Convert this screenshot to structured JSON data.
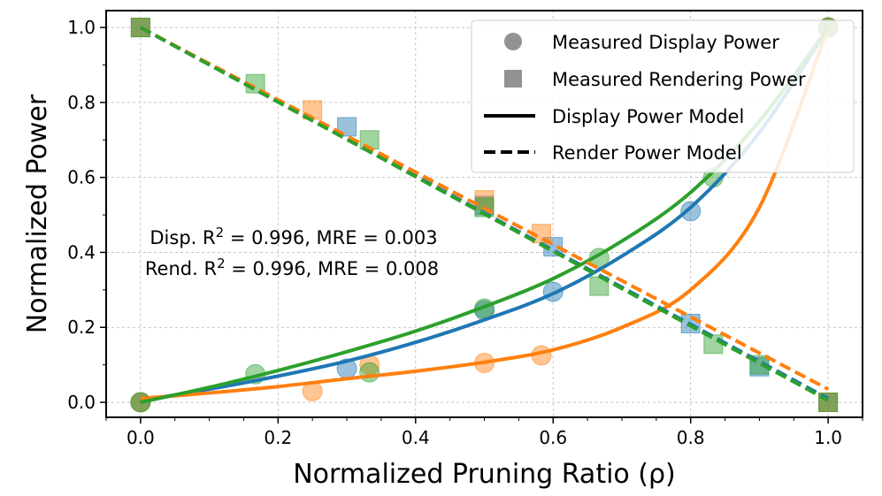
{
  "chart_data": {
    "type": "scatter",
    "xlabel": "Normalized Pruning Ratio (ρ)",
    "ylabel": "Normalized Power",
    "xlim": [
      -0.05,
      1.05
    ],
    "ylim": [
      -0.04,
      1.045
    ],
    "xticks": [
      0.0,
      0.2,
      0.4,
      0.6,
      0.8,
      1.0
    ],
    "yticks": [
      0.0,
      0.2,
      0.4,
      0.6,
      0.8,
      1.0
    ],
    "xtick_labels": [
      "0.0",
      "0.2",
      "0.4",
      "0.6",
      "0.8",
      "1.0"
    ],
    "ytick_labels": [
      "0.0",
      "0.2",
      "0.4",
      "0.6",
      "0.8",
      "1.0"
    ],
    "grid": true,
    "legend_position": "top-right",
    "legend": [
      {
        "label": "Measured Display Power",
        "marker": "circle"
      },
      {
        "label": "Measured Rendering Power",
        "marker": "square"
      },
      {
        "label": "Display Power Model",
        "line": "solid"
      },
      {
        "label": "Render Power Model",
        "line": "dashed"
      }
    ],
    "annotations": [
      {
        "prefix": "Disp. R",
        "sup": "2",
        "suffix": " = 0.996, MRE = 0.003"
      },
      {
        "prefix": "Rend. R",
        "sup": "2",
        "suffix": " = 0.996, MRE = 0.008"
      }
    ],
    "colors": {
      "blue": "#1f77b4",
      "orange": "#ff7f0e",
      "green": "#2ca02c"
    },
    "display_points": {
      "blue": [
        [
          0.0,
          0.0
        ],
        [
          0.3,
          0.09
        ],
        [
          0.5,
          0.245
        ],
        [
          0.6,
          0.295
        ],
        [
          0.8,
          0.51
        ],
        [
          1.0,
          1.0
        ]
      ],
      "orange": [
        [
          0.0,
          0.0
        ],
        [
          0.25,
          0.03
        ],
        [
          0.333,
          0.1
        ],
        [
          0.5,
          0.105
        ],
        [
          0.583,
          0.125
        ],
        [
          1.0,
          1.0
        ]
      ],
      "green": [
        [
          0.0,
          0.0
        ],
        [
          0.167,
          0.075
        ],
        [
          0.333,
          0.08
        ],
        [
          0.5,
          0.25
        ],
        [
          0.667,
          0.385
        ],
        [
          0.833,
          0.6
        ],
        [
          1.0,
          1.0
        ]
      ]
    },
    "render_points": {
      "blue": [
        [
          0.0,
          1.0
        ],
        [
          0.3,
          0.735
        ],
        [
          0.5,
          0.525
        ],
        [
          0.6,
          0.415
        ],
        [
          0.8,
          0.21
        ],
        [
          0.9,
          0.095
        ],
        [
          1.0,
          0.0
        ]
      ],
      "orange": [
        [
          0.0,
          1.0
        ],
        [
          0.25,
          0.78
        ],
        [
          0.5,
          0.54
        ],
        [
          0.583,
          0.45
        ],
        [
          1.0,
          0.0
        ]
      ],
      "green": [
        [
          0.0,
          1.0
        ],
        [
          0.167,
          0.85
        ],
        [
          0.333,
          0.7
        ],
        [
          0.5,
          0.52
        ],
        [
          0.667,
          0.31
        ],
        [
          0.833,
          0.155
        ],
        [
          0.9,
          0.1
        ],
        [
          1.0,
          0.0
        ]
      ]
    },
    "display_models": {
      "blue": [
        [
          0.0,
          0.005
        ],
        [
          0.1,
          0.035
        ],
        [
          0.2,
          0.07
        ],
        [
          0.3,
          0.11
        ],
        [
          0.4,
          0.16
        ],
        [
          0.5,
          0.22
        ],
        [
          0.6,
          0.29
        ],
        [
          0.7,
          0.39
        ],
        [
          0.8,
          0.52
        ],
        [
          0.9,
          0.72
        ],
        [
          1.0,
          1.0
        ]
      ],
      "orange": [
        [
          0.0,
          0.01
        ],
        [
          0.1,
          0.025
        ],
        [
          0.2,
          0.042
        ],
        [
          0.3,
          0.063
        ],
        [
          0.4,
          0.083
        ],
        [
          0.5,
          0.107
        ],
        [
          0.6,
          0.14
        ],
        [
          0.7,
          0.2
        ],
        [
          0.8,
          0.3
        ],
        [
          0.9,
          0.52
        ],
        [
          1.0,
          1.0
        ]
      ],
      "green": [
        [
          0.0,
          0.0
        ],
        [
          0.1,
          0.04
        ],
        [
          0.2,
          0.085
        ],
        [
          0.3,
          0.135
        ],
        [
          0.4,
          0.19
        ],
        [
          0.5,
          0.255
        ],
        [
          0.6,
          0.33
        ],
        [
          0.7,
          0.43
        ],
        [
          0.8,
          0.56
        ],
        [
          0.9,
          0.75
        ],
        [
          1.0,
          1.0
        ]
      ]
    },
    "render_models": {
      "blue": [
        [
          0.0,
          1.0
        ],
        [
          1.0,
          0.01
        ]
      ],
      "orange": [
        [
          0.0,
          1.0
        ],
        [
          1.0,
          0.035
        ]
      ],
      "green": [
        [
          0.0,
          1.0
        ],
        [
          1.0,
          0.005
        ]
      ]
    }
  }
}
